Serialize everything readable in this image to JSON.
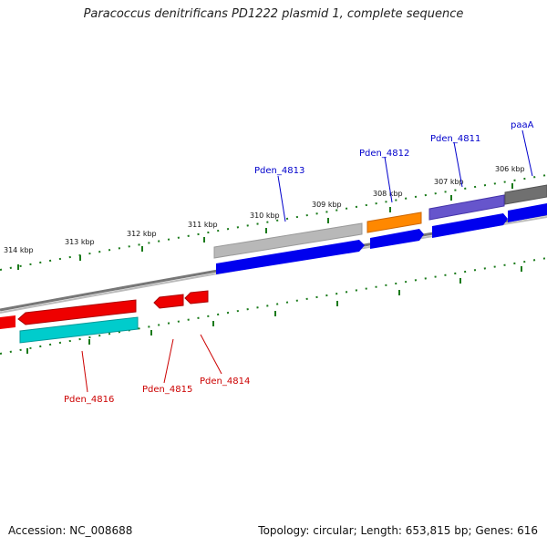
{
  "title": "Paracoccus denitrificans PD1222 plasmid 1, complete sequence",
  "footer": {
    "accession": "Accession: NC_008688",
    "topology": "Topology: circular; Length: 653,815 bp; Genes: 616"
  },
  "ticks": [
    "314 kbp",
    "313 kbp",
    "312 kbp",
    "311 kbp",
    "310 kbp",
    "309 kbp",
    "308 kbp",
    "307 kbp",
    "306 kbp"
  ],
  "labels": {
    "pden_4813": "Pden_4813",
    "pden_4812": "Pden_4812",
    "pden_4811": "Pden_4811",
    "paaA": "paaA",
    "pden_4816": "Pden_4816",
    "pden_4815": "Pden_4815",
    "pden_4814": "Pden_4814"
  },
  "colors": {
    "forward_label": "#0000cc",
    "reverse_label": "#cc0000",
    "cds": "#0000ee",
    "gene_red": "#ee0000",
    "cyan": "#00cccc",
    "orange": "#ff8800",
    "purple": "#6655cc",
    "gray": "#b0b0b0",
    "darkgray": "#707070",
    "tick": "#1a7a1a",
    "backbone": "#888888"
  }
}
